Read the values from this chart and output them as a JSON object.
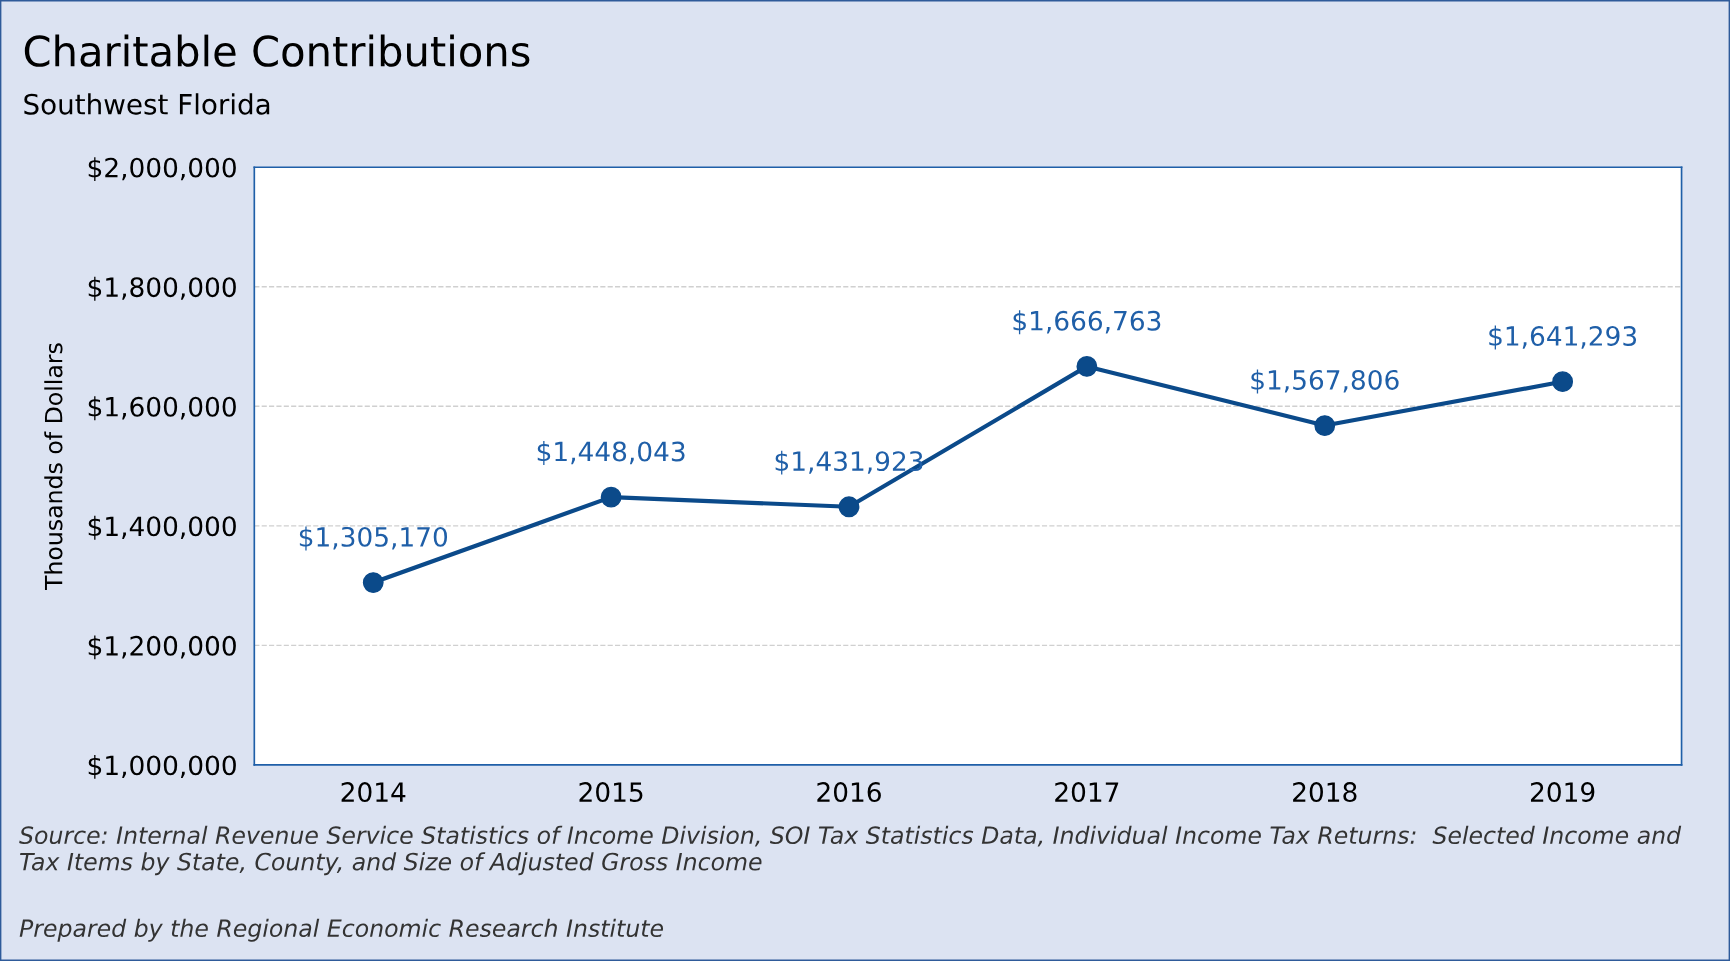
{
  "chart_data": {
    "type": "line",
    "title": "Charitable Contributions",
    "subtitle": "Southwest Florida",
    "ylabel": "Thousands of Dollars",
    "categories": [
      "2014",
      "2015",
      "2016",
      "2017",
      "2018",
      "2019"
    ],
    "series": [
      {
        "color": "#0b4a8a",
        "values": [
          1305170,
          1448043,
          1431923,
          1666763,
          1567806,
          1641293
        ],
        "value_labels": [
          "$1,305,170",
          "$1,448,043",
          "$1,431,923",
          "$1,666,763",
          "$1,567,806",
          "$1,641,293"
        ]
      }
    ],
    "ylim": [
      1000000,
      2000000
    ],
    "yticks": [
      {
        "value": 1000000,
        "label": "$1,000,000"
      },
      {
        "value": 1200000,
        "label": "$1,200,000"
      },
      {
        "value": 1400000,
        "label": "$1,400,000"
      },
      {
        "value": 1600000,
        "label": "$1,600,000"
      },
      {
        "value": 1800000,
        "label": "$1,800,000"
      },
      {
        "value": 2000000,
        "label": "$2,000,000"
      }
    ],
    "grid": "y",
    "marker": "circle",
    "line_style": "solid",
    "annotations": [
      "Source: Internal Revenue Service Statistics of Income Division, SOI Tax Statistics Data, Individual Income Tax Returns:  Selected Income and Tax Items by State, County, and Size of Adjusted Gross Income",
      "Prepared by the Regional Economic Research Institute"
    ]
  }
}
